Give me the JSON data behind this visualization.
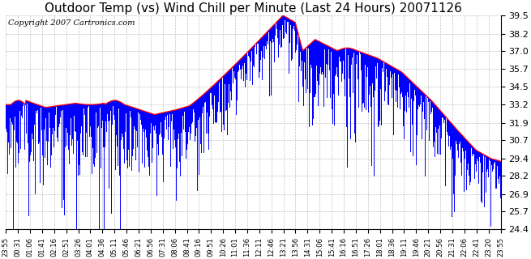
{
  "title": "Outdoor Temp (vs) Wind Chill per Minute (Last 24 Hours) 20071126",
  "copyright": "Copyright 2007 Cartronics.com",
  "yticks": [
    24.4,
    25.7,
    26.9,
    28.2,
    29.4,
    30.7,
    31.9,
    33.2,
    34.5,
    35.7,
    37.0,
    38.2,
    39.5
  ],
  "ymin": 24.4,
  "ymax": 39.5,
  "bar_color": "#0000ff",
  "line_color": "#ff0000",
  "bg_color": "#ffffff",
  "grid_color": "#aaaaaa",
  "title_fontsize": 11,
  "copyright_fontsize": 7,
  "xtick_fontsize": 6,
  "ytick_fontsize": 8
}
